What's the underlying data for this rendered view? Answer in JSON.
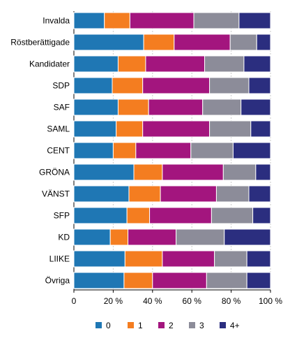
{
  "chart_data": {
    "type": "bar",
    "orientation": "horizontal",
    "stacked": true,
    "percent": true,
    "categories": [
      "Invalda",
      "Röstberättigade",
      "Kandidater",
      "SDP",
      "SAF",
      "SAML",
      "CENT",
      "GRÖNA",
      "VÄNST",
      "SFP",
      "KD",
      "LIIKE",
      "Övriga"
    ],
    "series": [
      {
        "name": "0",
        "color": "#1f77b4",
        "values": [
          15.5,
          35.5,
          22.5,
          19.5,
          22.5,
          21.5,
          20.0,
          30.5,
          28.0,
          27.0,
          18.5,
          26.0,
          25.5
        ]
      },
      {
        "name": "1",
        "color": "#f47d20",
        "values": [
          13.0,
          15.5,
          14.0,
          15.5,
          15.5,
          13.5,
          11.5,
          14.5,
          16.0,
          11.5,
          9.0,
          19.0,
          14.5
        ]
      },
      {
        "name": "2",
        "color": "#a3157e",
        "values": [
          32.5,
          28.5,
          30.0,
          34.0,
          27.5,
          34.0,
          28.0,
          31.0,
          28.5,
          31.5,
          24.5,
          26.5,
          27.5
        ]
      },
      {
        "name": "3",
        "color": "#8c8c99",
        "values": [
          23.0,
          13.5,
          20.0,
          20.0,
          19.5,
          21.0,
          21.5,
          16.5,
          16.5,
          21.0,
          24.5,
          16.5,
          20.5
        ]
      },
      {
        "name": "4+",
        "color": "#2b2e7f",
        "values": [
          16.0,
          7.0,
          13.5,
          11.0,
          15.0,
          10.0,
          19.0,
          7.5,
          11.0,
          9.0,
          23.5,
          12.0,
          12.0
        ]
      }
    ],
    "xlim": [
      0,
      100
    ],
    "xticks": [
      "0",
      "20 %",
      "40 %",
      "60 %",
      "80 %",
      "100 %"
    ],
    "xlabel": "",
    "ylabel": "",
    "grid": true,
    "legend_position": "bottom"
  }
}
